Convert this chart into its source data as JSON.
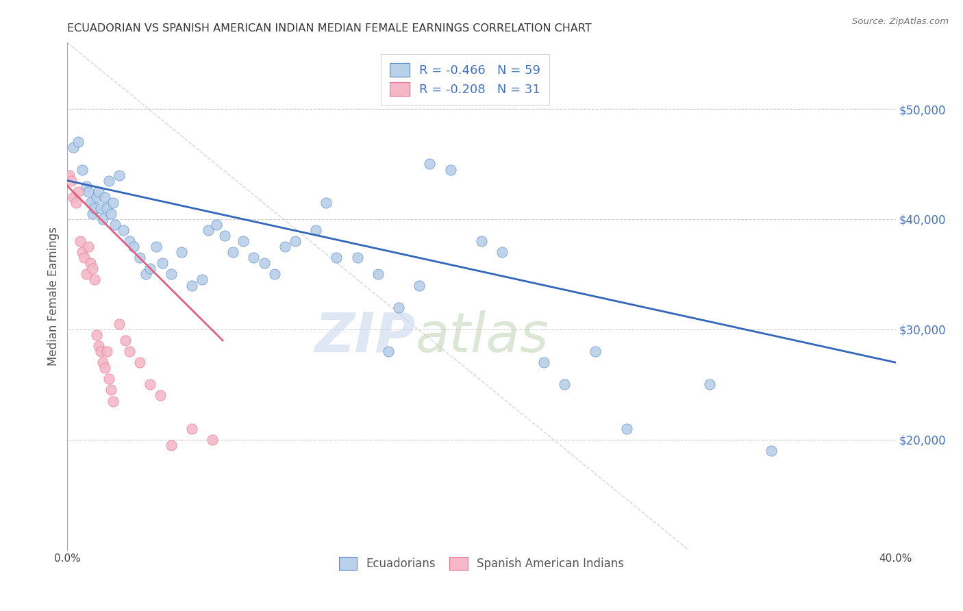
{
  "title": "ECUADORIAN VS SPANISH AMERICAN INDIAN MEDIAN FEMALE EARNINGS CORRELATION CHART",
  "source": "Source: ZipAtlas.com",
  "ylabel": "Median Female Earnings",
  "watermark_zip": "ZIP",
  "watermark_atlas": "atlas",
  "xlim": [
    0.0,
    0.4
  ],
  "ylim": [
    10000,
    56000
  ],
  "yticks": [
    20000,
    30000,
    40000,
    50000
  ],
  "ytick_labels": [
    "$20,000",
    "$30,000",
    "$40,000",
    "$50,000"
  ],
  "xticks": [
    0.0,
    0.05,
    0.1,
    0.15,
    0.2,
    0.25,
    0.3,
    0.35,
    0.4
  ],
  "xtick_labels": [
    "0.0%",
    "",
    "",
    "",
    "",
    "",
    "",
    "",
    "40.0%"
  ],
  "blue_R": -0.466,
  "blue_N": 59,
  "pink_R": -0.208,
  "pink_N": 31,
  "blue_fill": "#b8d0e8",
  "pink_fill": "#f4b8c8",
  "blue_edge": "#5588cc",
  "pink_edge": "#e87090",
  "blue_line": "#3366bb",
  "pink_line": "#e06080",
  "dash_color": "#cccccc",
  "right_color": "#4472c4",
  "title_color": "#333333",
  "blue_scatter_x": [
    0.003,
    0.005,
    0.007,
    0.009,
    0.01,
    0.011,
    0.012,
    0.013,
    0.014,
    0.015,
    0.016,
    0.017,
    0.018,
    0.019,
    0.02,
    0.021,
    0.022,
    0.023,
    0.025,
    0.027,
    0.03,
    0.032,
    0.035,
    0.038,
    0.04,
    0.043,
    0.046,
    0.05,
    0.055,
    0.06,
    0.065,
    0.068,
    0.072,
    0.076,
    0.08,
    0.085,
    0.09,
    0.095,
    0.1,
    0.105,
    0.11,
    0.12,
    0.125,
    0.13,
    0.14,
    0.15,
    0.155,
    0.16,
    0.17,
    0.175,
    0.185,
    0.2,
    0.21,
    0.23,
    0.24,
    0.255,
    0.27,
    0.31,
    0.34
  ],
  "blue_scatter_y": [
    46500,
    47000,
    44500,
    43000,
    42500,
    41500,
    40500,
    41000,
    42000,
    42500,
    41000,
    40000,
    42000,
    41000,
    43500,
    40500,
    41500,
    39500,
    44000,
    39000,
    38000,
    37500,
    36500,
    35000,
    35500,
    37500,
    36000,
    35000,
    37000,
    34000,
    34500,
    39000,
    39500,
    38500,
    37000,
    38000,
    36500,
    36000,
    35000,
    37500,
    38000,
    39000,
    41500,
    36500,
    36500,
    35000,
    28000,
    32000,
    34000,
    45000,
    44500,
    38000,
    37000,
    27000,
    25000,
    28000,
    21000,
    25000,
    19000
  ],
  "pink_scatter_x": [
    0.001,
    0.002,
    0.003,
    0.004,
    0.005,
    0.006,
    0.007,
    0.008,
    0.009,
    0.01,
    0.011,
    0.012,
    0.013,
    0.014,
    0.015,
    0.016,
    0.017,
    0.018,
    0.019,
    0.02,
    0.021,
    0.022,
    0.025,
    0.028,
    0.03,
    0.035,
    0.04,
    0.045,
    0.05,
    0.06,
    0.07
  ],
  "pink_scatter_y": [
    44000,
    43500,
    42000,
    41500,
    42500,
    38000,
    37000,
    36500,
    35000,
    37500,
    36000,
    35500,
    34500,
    29500,
    28500,
    28000,
    27000,
    26500,
    28000,
    25500,
    24500,
    23500,
    30500,
    29000,
    28000,
    27000,
    25000,
    24000,
    19500,
    21000,
    20000
  ],
  "blue_line_x0": 0.0,
  "blue_line_x1": 0.4,
  "blue_line_y0": 43500,
  "blue_line_y1": 27000,
  "pink_line_x0": 0.0,
  "pink_line_x1": 0.075,
  "pink_line_y0": 43000,
  "pink_line_y1": 29000
}
